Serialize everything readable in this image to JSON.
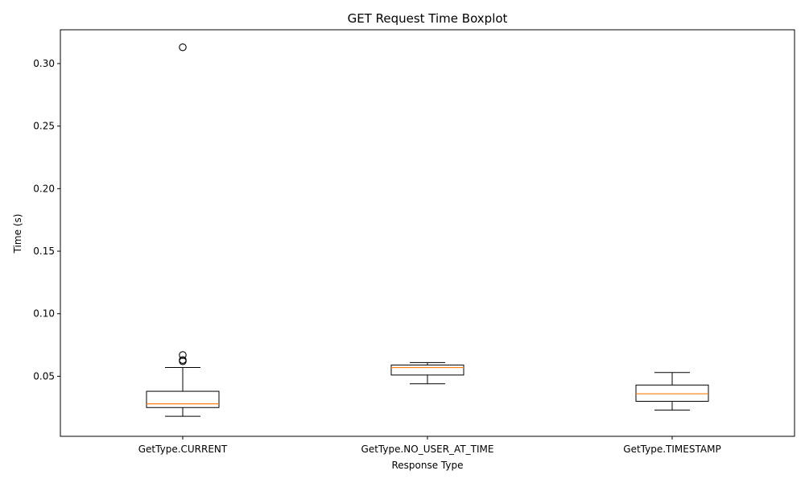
{
  "chart_data": {
    "type": "boxplot",
    "title": "GET Request Time Boxplot",
    "xlabel": "Response Type",
    "ylabel": "Time (s)",
    "ylim": [
      0.002,
      0.327
    ],
    "yticks": [
      0.05,
      0.1,
      0.15,
      0.2,
      0.25,
      0.3
    ],
    "ytick_labels": [
      "0.05",
      "0.10",
      "0.15",
      "0.20",
      "0.25",
      "0.30"
    ],
    "grid": false,
    "box_color": "#000000",
    "median_color": "#ff7f0e",
    "categories": [
      "GetType.CURRENT",
      "GetType.NO_USER_AT_TIME",
      "GetType.TIMESTAMP"
    ],
    "boxes": [
      {
        "whisker_low": 0.018,
        "q1": 0.025,
        "median": 0.028,
        "q3": 0.038,
        "whisker_high": 0.057,
        "outliers": [
          0.062,
          0.063,
          0.067,
          0.313
        ]
      },
      {
        "whisker_low": 0.044,
        "q1": 0.051,
        "median": 0.057,
        "q3": 0.059,
        "whisker_high": 0.061,
        "outliers": []
      },
      {
        "whisker_low": 0.023,
        "q1": 0.03,
        "median": 0.036,
        "q3": 0.043,
        "whisker_high": 0.053,
        "outliers": []
      }
    ]
  }
}
